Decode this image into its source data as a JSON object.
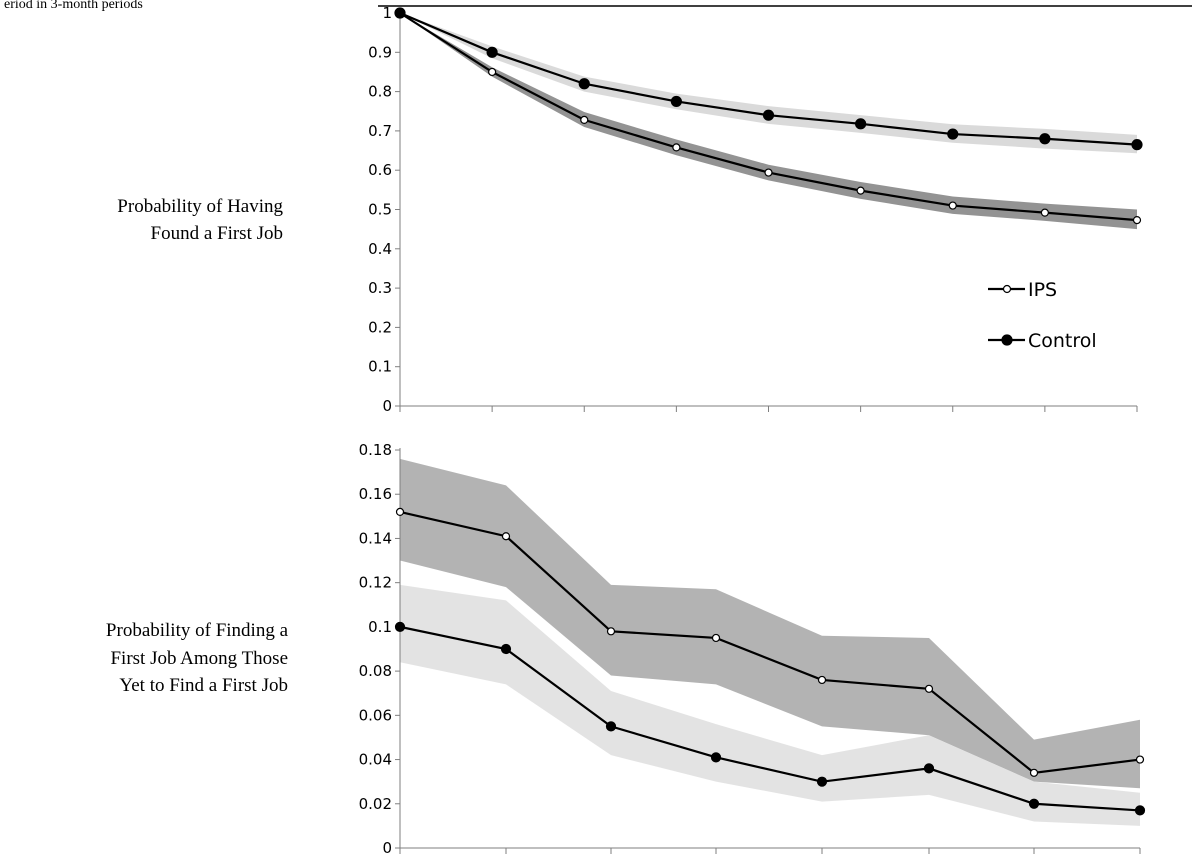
{
  "header_fragment": "eriod in 3-month periods",
  "chart_data": [
    {
      "type": "line",
      "ylabel_lines": [
        "Probability of Having",
        "Found a First Job"
      ],
      "ylim": [
        0,
        1
      ],
      "yticks": [
        0,
        0.1,
        0.2,
        0.3,
        0.4,
        0.5,
        0.6,
        0.7,
        0.8,
        0.9,
        1
      ],
      "ytick_labels": [
        "0",
        "0.1",
        "0.2",
        "0.3",
        "0.4",
        "0.5",
        "0.6",
        "0.7",
        "0.8",
        "0.9",
        "1"
      ],
      "x": [
        0,
        1,
        2,
        3,
        4,
        5,
        6,
        7,
        8
      ],
      "legend": {
        "placement": "lower-right",
        "entries": [
          "IPS",
          "Control"
        ]
      },
      "series": [
        {
          "name": "IPS",
          "marker": "open-circle",
          "band_color": "#808080",
          "values": [
            1.0,
            0.85,
            0.728,
            0.658,
            0.594,
            0.548,
            0.51,
            0.492,
            0.473
          ],
          "lower": [
            1.0,
            0.838,
            0.71,
            0.638,
            0.574,
            0.527,
            0.489,
            0.471,
            0.45
          ],
          "upper": [
            1.0,
            0.862,
            0.748,
            0.678,
            0.614,
            0.57,
            0.533,
            0.515,
            0.5
          ]
        },
        {
          "name": "Control",
          "marker": "filled-circle",
          "band_color": "#d4d4d4",
          "values": [
            1.0,
            0.9,
            0.82,
            0.775,
            0.74,
            0.718,
            0.692,
            0.68,
            0.665
          ],
          "lower": [
            1.0,
            0.885,
            0.8,
            0.755,
            0.718,
            0.695,
            0.67,
            0.655,
            0.643
          ],
          "upper": [
            1.0,
            0.915,
            0.838,
            0.795,
            0.763,
            0.74,
            0.717,
            0.705,
            0.69
          ]
        }
      ]
    },
    {
      "type": "line",
      "ylabel_lines": [
        "Probability of Finding a",
        "First Job Among Those",
        "Yet to Find a First Job"
      ],
      "ylim": [
        0,
        0.18
      ],
      "yticks": [
        0,
        0.02,
        0.04,
        0.06,
        0.08,
        0.1,
        0.12,
        0.14,
        0.16,
        0.18
      ],
      "ytick_labels": [
        "0",
        "0.02",
        "0.04",
        "0.06",
        "0.08",
        "0.1",
        "0.12",
        "0.14",
        "0.16",
        "0.18"
      ],
      "x": [
        0,
        1,
        2,
        3,
        4,
        5,
        6,
        7
      ],
      "series": [
        {
          "name": "IPS",
          "marker": "open-circle",
          "band_color": "#a6a6a6",
          "values": [
            0.152,
            0.141,
            0.098,
            0.095,
            0.076,
            0.072,
            0.034,
            0.04
          ],
          "lower": [
            0.13,
            0.118,
            0.078,
            0.074,
            0.055,
            0.051,
            0.03,
            0.027
          ],
          "upper": [
            0.176,
            0.164,
            0.119,
            0.117,
            0.096,
            0.095,
            0.049,
            0.058
          ]
        },
        {
          "name": "Control",
          "marker": "filled-circle",
          "band_color": "#dedede",
          "values": [
            0.1,
            0.09,
            0.055,
            0.041,
            0.03,
            0.036,
            0.02,
            0.017
          ],
          "lower": [
            0.084,
            0.074,
            0.042,
            0.03,
            0.021,
            0.024,
            0.012,
            0.01
          ],
          "upper": [
            0.119,
            0.112,
            0.071,
            0.056,
            0.042,
            0.051,
            0.03,
            0.025
          ]
        }
      ]
    }
  ]
}
